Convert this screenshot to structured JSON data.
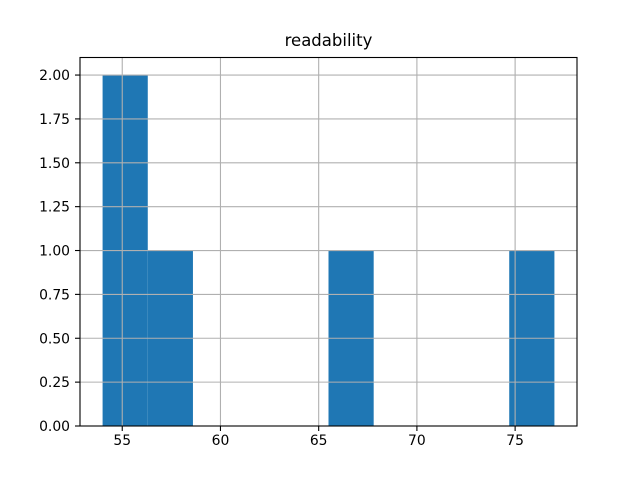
{
  "chart_data": {
    "type": "bar",
    "subtype": "histogram",
    "title": "readability",
    "xlabel": "",
    "ylabel": "",
    "bin_edges": [
      54.0,
      56.3,
      58.6,
      60.9,
      63.2,
      65.5,
      67.8,
      70.1,
      72.4,
      74.7,
      77.0
    ],
    "counts": [
      2,
      1,
      0,
      0,
      0,
      1,
      0,
      0,
      0,
      1
    ],
    "xlim": [
      52.85,
      78.15
    ],
    "ylim": [
      0,
      2.1
    ],
    "xticks": [
      {
        "value": 55,
        "label": "55"
      },
      {
        "value": 60,
        "label": "60"
      },
      {
        "value": 65,
        "label": "65"
      },
      {
        "value": 70,
        "label": "70"
      },
      {
        "value": 75,
        "label": "75"
      }
    ],
    "yticks": [
      {
        "value": 0.0,
        "label": "0.00"
      },
      {
        "value": 0.25,
        "label": "0.25"
      },
      {
        "value": 0.5,
        "label": "0.50"
      },
      {
        "value": 0.75,
        "label": "0.75"
      },
      {
        "value": 1.0,
        "label": "1.00"
      },
      {
        "value": 1.25,
        "label": "1.25"
      },
      {
        "value": 1.5,
        "label": "1.50"
      },
      {
        "value": 1.75,
        "label": "1.75"
      },
      {
        "value": 2.0,
        "label": "2.00"
      }
    ],
    "grid": true,
    "grid_on_top_of_bars": true,
    "legend": false,
    "colors": {
      "bar": "#1f77b4",
      "grid": "#b0b0b0",
      "frame": "#000000",
      "tick": "#000000",
      "text": "#000000",
      "background": "#ffffff"
    }
  }
}
